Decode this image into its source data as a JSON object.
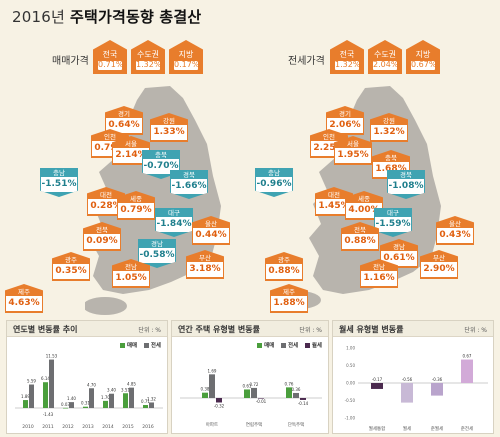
{
  "title": {
    "light": "2016년",
    "bold": "주택가격동향 총결산"
  },
  "sale": {
    "label": "매매가격",
    "summary": [
      {
        "name": "전국",
        "value": "0.71%"
      },
      {
        "name": "수도권",
        "value": "1.32%"
      },
      {
        "name": "지방",
        "value": "0.17%"
      }
    ],
    "regions": [
      {
        "name": "경기",
        "value": "0.64%",
        "dir": "up"
      },
      {
        "name": "강원",
        "value": "1.33%",
        "dir": "up"
      },
      {
        "name": "인천",
        "value": "0.79%",
        "dir": "up"
      },
      {
        "name": "서울",
        "value": "2.14%",
        "dir": "up"
      },
      {
        "name": "충북",
        "value": "-0.70%",
        "dir": "down"
      },
      {
        "name": "충남",
        "value": "-1.51%",
        "dir": "down"
      },
      {
        "name": "경북",
        "value": "-1.66%",
        "dir": "down"
      },
      {
        "name": "대전",
        "value": "0.28%",
        "dir": "up"
      },
      {
        "name": "세종",
        "value": "0.79%",
        "dir": "up"
      },
      {
        "name": "대구",
        "value": "-1.84%",
        "dir": "down"
      },
      {
        "name": "울산",
        "value": "0.44%",
        "dir": "up"
      },
      {
        "name": "전북",
        "value": "0.09%",
        "dir": "up"
      },
      {
        "name": "경남",
        "value": "-0.58%",
        "dir": "down"
      },
      {
        "name": "광주",
        "value": "0.35%",
        "dir": "up"
      },
      {
        "name": "부산",
        "value": "3.18%",
        "dir": "up"
      },
      {
        "name": "전남",
        "value": "1.05%",
        "dir": "up"
      },
      {
        "name": "제주",
        "value": "4.63%",
        "dir": "up"
      }
    ]
  },
  "jeonse": {
    "label": "전세가격",
    "summary": [
      {
        "name": "전국",
        "value": "1.32%"
      },
      {
        "name": "수도권",
        "value": "2.04%"
      },
      {
        "name": "지방",
        "value": "0.67%"
      }
    ],
    "regions": [
      {
        "name": "경기",
        "value": "2.06%",
        "dir": "up"
      },
      {
        "name": "강원",
        "value": "1.32%",
        "dir": "up"
      },
      {
        "name": "인천",
        "value": "2.25%",
        "dir": "up"
      },
      {
        "name": "서울",
        "value": "1.95%",
        "dir": "up"
      },
      {
        "name": "충북",
        "value": "1.68%",
        "dir": "up"
      },
      {
        "name": "충남",
        "value": "-0.96%",
        "dir": "down"
      },
      {
        "name": "경북",
        "value": "-1.08%",
        "dir": "down"
      },
      {
        "name": "대전",
        "value": "1.45%",
        "dir": "up"
      },
      {
        "name": "세종",
        "value": "4.00%",
        "dir": "up"
      },
      {
        "name": "대구",
        "value": "-1.59%",
        "dir": "down"
      },
      {
        "name": "울산",
        "value": "0.43%",
        "dir": "up"
      },
      {
        "name": "전북",
        "value": "0.88%",
        "dir": "up"
      },
      {
        "name": "경남",
        "value": "0.61%",
        "dir": "up"
      },
      {
        "name": "광주",
        "value": "0.88%",
        "dir": "up"
      },
      {
        "name": "부산",
        "value": "2.90%",
        "dir": "up"
      },
      {
        "name": "전남",
        "value": "1.16%",
        "dir": "up"
      },
      {
        "name": "제주",
        "value": "1.88%",
        "dir": "up"
      }
    ]
  },
  "panels": {
    "p1": {
      "title": "연도별 변동률 추이",
      "unit": "단위 : %"
    },
    "p2": {
      "title": "연간 주택 유형별 변동률",
      "unit": "단위 : %"
    },
    "p3": {
      "title": "월세 유형별 변동률",
      "unit": "단위 : %"
    }
  },
  "colors": {
    "up": "#e87d2c",
    "down": "#3fa3b2",
    "sale_bar": "#4a9e3c",
    "jeonse_bar": "#6d6e71",
    "rent_bar": "#4b2a4f",
    "map": "#b8b4ad"
  },
  "chart_data": [
    {
      "type": "bar",
      "title": "연도별 변동률 추이",
      "categories": [
        "2010",
        "2011",
        "2012",
        "2013",
        "2014",
        "2015",
        "2016"
      ],
      "series": [
        {
          "name": "매매",
          "values": [
            1.89,
            6.14,
            0.03,
            0.31,
            1.7,
            3.51,
            0.71
          ]
        },
        {
          "name": "전세",
          "values": [
            5.59,
            11.53,
            1.4,
            4.7,
            3.4,
            4.85,
            1.32
          ]
        }
      ],
      "extra_labels": [
        "-1.43"
      ]
    },
    {
      "type": "bar",
      "title": "연간 주택 유형별 변동률",
      "categories": [
        "아파트",
        "연립주택",
        "단독주택"
      ],
      "series": [
        {
          "name": "매매",
          "values": [
            0.38,
            0.61,
            0.76
          ]
        },
        {
          "name": "전세",
          "values": [
            1.69,
            0.72,
            0.36
          ]
        },
        {
          "name": "월세",
          "values": [
            -0.32,
            -0.01,
            -0.14
          ]
        }
      ]
    },
    {
      "type": "bar",
      "title": "월세 유형별 변동률",
      "categories": [
        "월세통합",
        "월세",
        "준월세",
        "준전세"
      ],
      "values": [
        -0.17,
        -0.56,
        -0.36,
        0.67
      ],
      "ylim": [
        -1.0,
        1.0
      ],
      "ticks": [
        "1.00",
        "0.50",
        "0.00",
        "-0.50",
        "-1.00"
      ]
    }
  ]
}
